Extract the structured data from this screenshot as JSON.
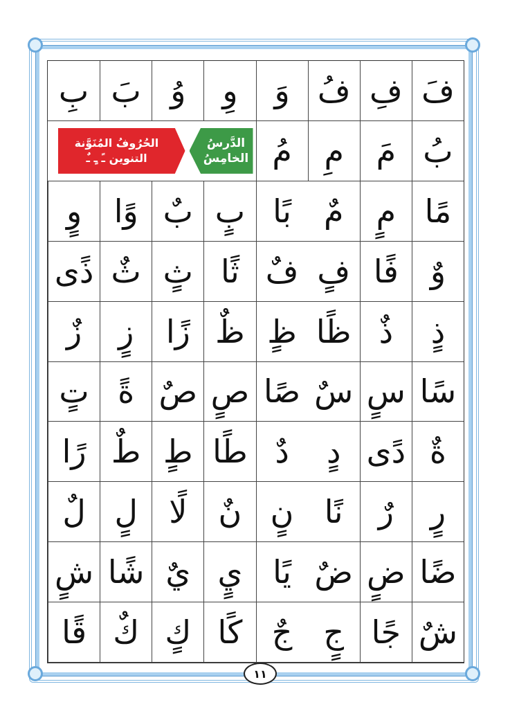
{
  "lesson_banner": {
    "line1": "الدَّرسُ",
    "line2": "الخامِسُ",
    "color": "#3d9a47"
  },
  "topic_banner": {
    "line1": "الحُرُوفُ المُنَوَّنة",
    "line2": "التنوين ـً ـٍ ـٌ",
    "color": "#e0262c"
  },
  "rows": [
    [
      "فَ",
      "فِ",
      "فُ",
      "وَ",
      "وِ",
      "وُ",
      "بَ",
      "بِ"
    ],
    [
      "بُ",
      "مَ",
      "مِ",
      "مُ"
    ],
    [
      "مًا",
      "مٍ",
      "مٌ",
      "بًا",
      "بٍ",
      "بٌ",
      "وًا",
      "وٍ"
    ],
    [
      "وٌ",
      "فًا",
      "فٍ",
      "فٌ",
      "ثًا",
      "ثٍ",
      "ثٌ",
      "ذًى"
    ],
    [
      "ذٍ",
      "ذٌ",
      "ظًا",
      "ظٍ",
      "ظٌ",
      "زًا",
      "زٍ",
      "زٌ"
    ],
    [
      "سًا",
      "سٍ",
      "سٌ",
      "صًا",
      "صٍ",
      "صٌ",
      "ةً",
      "تٍ"
    ],
    [
      "ةٌ",
      "دًى",
      "دٍ",
      "دٌ",
      "طًا",
      "طٍ",
      "طٌ",
      "رًا"
    ],
    [
      "رٍ",
      "رٌ",
      "نًا",
      "نٍ",
      "نٌ",
      "لًا",
      "لٍ",
      "لٌ"
    ],
    [
      "ضًا",
      "ضٍ",
      "ضٌ",
      "يًا",
      "يٍ",
      "يٌ",
      "شًا",
      "شٍ"
    ],
    [
      "شٌ",
      "جًا",
      "جٍ",
      "جٌ",
      "كًا",
      "كٍ",
      "كٌ",
      "قًا"
    ]
  ],
  "page_number": "١١",
  "colors": {
    "frame": "#7fb6e0",
    "diacritic_early": "#29a3d8",
    "diacritic_late": "#b0479a"
  }
}
